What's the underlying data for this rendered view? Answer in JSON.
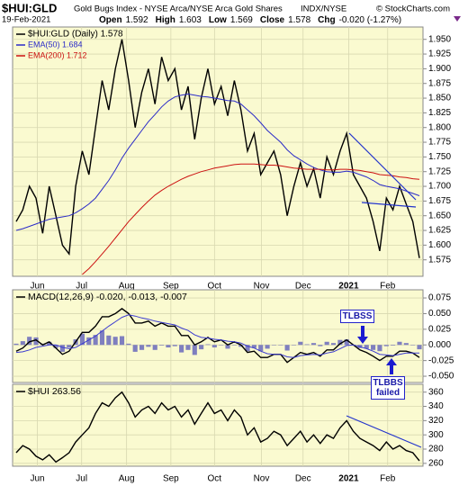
{
  "header": {
    "symbol": "$HUI:GLD",
    "description": "Gold Bugs Index - NYSE Arca/NYSE Arca Gold Shares",
    "exchange": "INDX/NYSE",
    "credit": "© StockCharts.com",
    "date": "19-Feb-2021",
    "stats": [
      {
        "label": "Open",
        "value": "1.592"
      },
      {
        "label": "High",
        "value": "1.603"
      },
      {
        "label": "Low",
        "value": "1.569"
      },
      {
        "label": "Close",
        "value": "1.578"
      },
      {
        "label": "Chg",
        "value": "-0.020 (-1.27%)"
      }
    ]
  },
  "chart_data": [
    {
      "type": "line",
      "xlim": [
        0,
        61
      ],
      "ylim": [
        1.547,
        1.971
      ],
      "grid": true,
      "xticks": [
        {
          "value": 3.2,
          "label": "Jun"
        },
        {
          "value": 9.9,
          "label": "Jul"
        },
        {
          "value": 16.7,
          "label": "Aug"
        },
        {
          "value": 23.4,
          "label": "Sep"
        },
        {
          "value": 30,
          "label": "Oct"
        },
        {
          "value": 37.1,
          "label": "Nov"
        },
        {
          "value": 43.4,
          "label": "Dec"
        },
        {
          "value": 50.3,
          "label": "2021"
        },
        {
          "value": 56.2,
          "label": "Feb"
        }
      ],
      "yticks": [
        {
          "value": 1.575,
          "label": "1.575"
        },
        {
          "value": 1.6,
          "label": "1.600"
        },
        {
          "value": 1.625,
          "label": "1.625"
        },
        {
          "value": 1.65,
          "label": "1.650"
        },
        {
          "value": 1.675,
          "label": "1.675"
        },
        {
          "value": 1.7,
          "label": "1.700"
        },
        {
          "value": 1.725,
          "label": "1.725"
        },
        {
          "value": 1.75,
          "label": "1.750"
        },
        {
          "value": 1.775,
          "label": "1.775"
        },
        {
          "value": 1.8,
          "label": "1.800"
        },
        {
          "value": 1.825,
          "label": "1.825"
        },
        {
          "value": 1.85,
          "label": "1.850"
        },
        {
          "value": 1.875,
          "label": "1.875"
        },
        {
          "value": 1.9,
          "label": "1.900"
        },
        {
          "value": 1.925,
          "label": "1.925"
        },
        {
          "value": 1.95,
          "label": "1.950"
        }
      ],
      "series": [
        {
          "name": "$HUI:GLD (Daily) 1.578",
          "color": "#000000",
          "width": 1.4,
          "values": [
            1.64,
            1.66,
            1.7,
            1.68,
            1.62,
            1.7,
            1.65,
            1.6,
            1.585,
            1.7,
            1.76,
            1.72,
            1.8,
            1.88,
            1.83,
            1.9,
            1.95,
            1.88,
            1.8,
            1.86,
            1.9,
            1.84,
            1.92,
            1.88,
            1.9,
            1.83,
            1.87,
            1.78,
            1.85,
            1.9,
            1.84,
            1.87,
            1.82,
            1.88,
            1.83,
            1.76,
            1.79,
            1.72,
            1.74,
            1.76,
            1.72,
            1.65,
            1.7,
            1.74,
            1.7,
            1.73,
            1.68,
            1.75,
            1.72,
            1.76,
            1.79,
            1.72,
            1.7,
            1.68,
            1.64,
            1.59,
            1.68,
            1.66,
            1.7,
            1.67,
            1.64,
            1.578
          ]
        },
        {
          "name": "EMA(50) 1.684",
          "color": "#2b2bc8",
          "width": 1,
          "values": [
            1.625,
            1.628,
            1.632,
            1.636,
            1.64,
            1.644,
            1.646,
            1.648,
            1.65,
            1.655,
            1.662,
            1.67,
            1.68,
            1.695,
            1.71,
            1.728,
            1.748,
            1.765,
            1.78,
            1.795,
            1.81,
            1.822,
            1.835,
            1.845,
            1.852,
            1.855,
            1.857,
            1.855,
            1.853,
            1.852,
            1.85,
            1.848,
            1.846,
            1.845,
            1.84,
            1.83,
            1.82,
            1.808,
            1.795,
            1.785,
            1.775,
            1.762,
            1.752,
            1.745,
            1.738,
            1.732,
            1.728,
            1.725,
            1.724,
            1.724,
            1.726,
            1.724,
            1.72,
            1.716,
            1.71,
            1.703,
            1.7,
            1.698,
            1.696,
            1.692,
            1.688,
            1.684
          ]
        },
        {
          "name": "EMA(200) 1.712",
          "color": "#cc1111",
          "width": 1,
          "values": [
            null,
            null,
            null,
            null,
            null,
            null,
            null,
            null,
            null,
            null,
            1.55,
            1.56,
            1.572,
            1.585,
            1.598,
            1.612,
            1.626,
            1.64,
            1.652,
            1.664,
            1.675,
            1.685,
            1.693,
            1.7,
            1.706,
            1.712,
            1.717,
            1.721,
            1.725,
            1.728,
            1.731,
            1.733,
            1.735,
            1.737,
            1.738,
            1.738,
            1.738,
            1.737,
            1.736,
            1.736,
            1.735,
            1.733,
            1.731,
            1.73,
            1.729,
            1.729,
            1.729,
            1.728,
            1.728,
            1.729,
            1.729,
            1.728,
            1.727,
            1.725,
            1.723,
            1.72,
            1.719,
            1.718,
            1.716,
            1.715,
            1.713,
            1.712
          ]
        }
      ]
    },
    {
      "type": "line",
      "xlim": [
        0,
        61
      ],
      "ylim": [
        -0.06,
        0.088
      ],
      "grid": true,
      "legend_text": "MACD(12,26,9) -0.020, -0.013, -0.007",
      "annotations": [
        "TLBSS",
        "TLBBS failed"
      ],
      "yticks": [
        {
          "value": -0.05,
          "label": "-0.050"
        },
        {
          "value": -0.025,
          "label": "-0.025"
        },
        {
          "value": 0,
          "label": "0.000"
        },
        {
          "value": 0.025,
          "label": "0.025"
        },
        {
          "value": 0.05,
          "label": "0.050"
        },
        {
          "value": 0.075,
          "label": "0.075"
        }
      ],
      "series": [
        {
          "type": "bar",
          "color": "#7f7fbf",
          "values": [
            0.002,
            0.006,
            0.013,
            0.012,
            0.002,
            0.005,
            -0.005,
            -0.011,
            -0.004,
            0.009,
            0.018,
            0.012,
            0.016,
            0.023,
            0.015,
            0.013,
            0.014,
            0.002,
            -0.011,
            -0.008,
            -0.003,
            -0.008,
            -0.001,
            -0.004,
            -0.002,
            -0.012,
            -0.008,
            -0.016,
            -0.007,
            0.001,
            -0.004,
            0.0,
            -0.006,
            0.0,
            -0.003,
            -0.01,
            -0.005,
            -0.01,
            -0.006,
            0.0,
            0.0,
            -0.009,
            0.0,
            0.005,
            0.001,
            0.003,
            -0.002,
            0.005,
            0.003,
            0.008,
            0.009,
            0.0,
            -0.005,
            -0.006,
            -0.008,
            -0.01,
            -0.002,
            -0.001,
            0.005,
            0.003,
            0.0,
            -0.007
          ]
        },
        {
          "type": "line",
          "color": "#000000",
          "width": 1.4,
          "values": [
            -0.01,
            -0.005,
            0.005,
            0.008,
            0.0,
            0.005,
            -0.005,
            -0.015,
            -0.01,
            0.005,
            0.02,
            0.02,
            0.03,
            0.045,
            0.045,
            0.05,
            0.058,
            0.05,
            0.035,
            0.035,
            0.038,
            0.03,
            0.035,
            0.03,
            0.03,
            0.015,
            0.015,
            0.0,
            0.005,
            0.012,
            0.005,
            0.008,
            0.0,
            0.005,
            0.0,
            -0.012,
            -0.01,
            -0.02,
            -0.02,
            -0.015,
            -0.015,
            -0.028,
            -0.02,
            -0.012,
            -0.015,
            -0.012,
            -0.018,
            -0.008,
            -0.008,
            0.002,
            0.008,
            0.0,
            -0.008,
            -0.012,
            -0.018,
            -0.025,
            -0.018,
            -0.018,
            -0.01,
            -0.01,
            -0.013,
            -0.02
          ]
        },
        {
          "type": "line",
          "color": "#3b3bd0",
          "width": 1,
          "values": [
            -0.012,
            -0.011,
            -0.008,
            -0.004,
            -0.002,
            0.0,
            0.0,
            -0.004,
            -0.006,
            -0.004,
            0.002,
            0.008,
            0.014,
            0.022,
            0.03,
            0.037,
            0.044,
            0.048,
            0.046,
            0.043,
            0.041,
            0.038,
            0.036,
            0.034,
            0.032,
            0.027,
            0.023,
            0.016,
            0.012,
            0.011,
            0.009,
            0.008,
            0.006,
            0.005,
            0.003,
            -0.002,
            -0.005,
            -0.01,
            -0.014,
            -0.015,
            -0.015,
            -0.019,
            -0.02,
            -0.017,
            -0.016,
            -0.015,
            -0.016,
            -0.013,
            -0.011,
            -0.006,
            -0.001,
            0.0,
            -0.003,
            -0.006,
            -0.01,
            -0.015,
            -0.016,
            -0.017,
            -0.015,
            -0.013,
            -0.013,
            -0.013
          ]
        }
      ]
    },
    {
      "type": "line",
      "xlim": [
        0,
        61
      ],
      "ylim": [
        256,
        371
      ],
      "grid": true,
      "legend_text": "$HUI 263.56",
      "xticks": [
        {
          "value": 3.2,
          "label": "Jun"
        },
        {
          "value": 9.9,
          "label": "Jul"
        },
        {
          "value": 16.7,
          "label": "Aug"
        },
        {
          "value": 23.4,
          "label": "Sep"
        },
        {
          "value": 30,
          "label": "Oct"
        },
        {
          "value": 37.1,
          "label": "Nov"
        },
        {
          "value": 43.4,
          "label": "Dec"
        },
        {
          "value": 50.3,
          "label": "2021"
        },
        {
          "value": 56.2,
          "label": "Feb"
        }
      ],
      "yticks": [
        260,
        280,
        300,
        320,
        340,
        360
      ],
      "series": [
        {
          "type": "line",
          "color": "#000000",
          "width": 1.4,
          "values": [
            275,
            285,
            280,
            270,
            265,
            272,
            262,
            268,
            275,
            290,
            300,
            310,
            330,
            345,
            340,
            352,
            360,
            345,
            325,
            335,
            340,
            330,
            345,
            335,
            340,
            325,
            335,
            315,
            330,
            345,
            330,
            335,
            320,
            335,
            325,
            300,
            310,
            290,
            295,
            305,
            300,
            285,
            295,
            305,
            290,
            300,
            288,
            300,
            295,
            310,
            320,
            305,
            295,
            290,
            285,
            278,
            290,
            280,
            285,
            278,
            275,
            263.56
          ]
        }
      ]
    }
  ]
}
